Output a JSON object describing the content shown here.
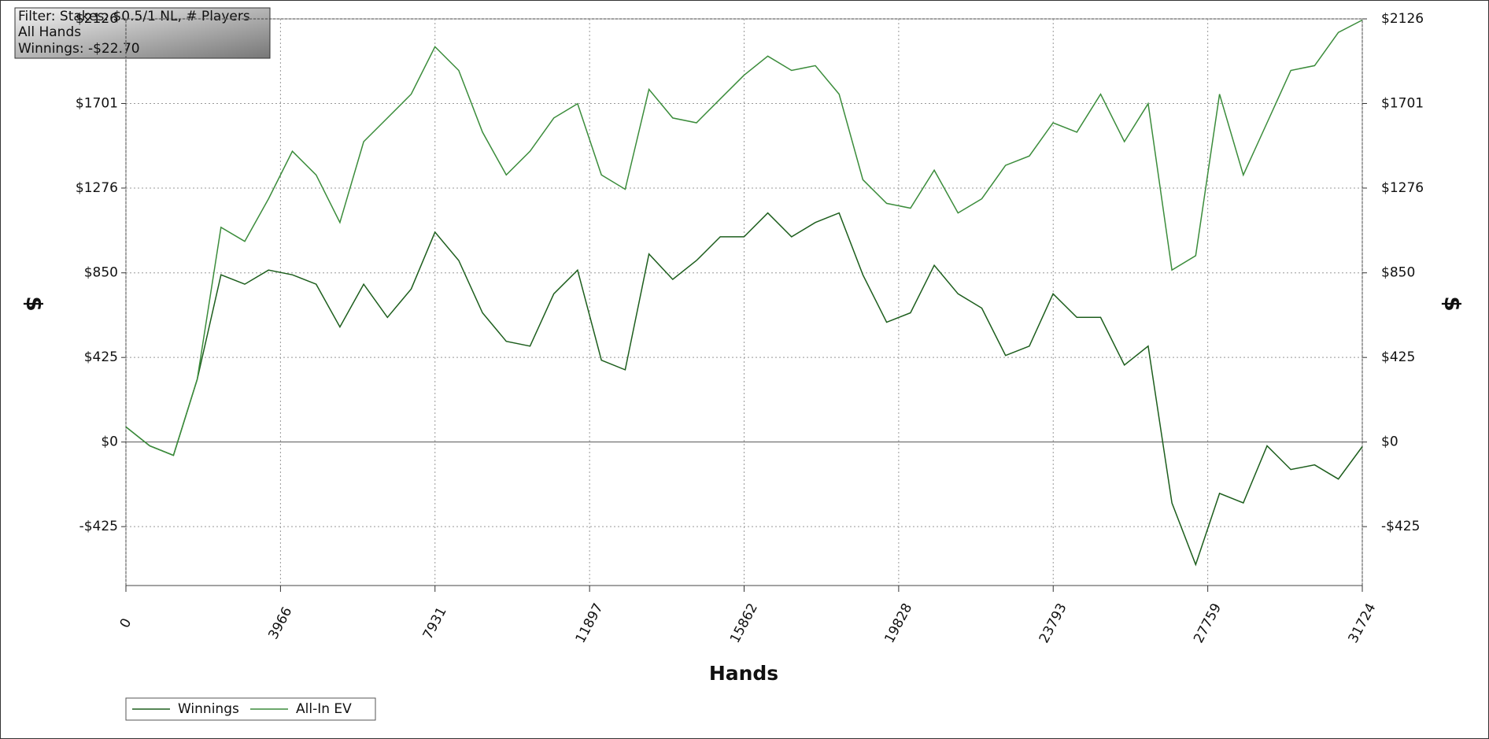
{
  "chart_data": {
    "type": "line",
    "annotations": [
      "Filter: Stakes: $0.5/1 NL, # Players",
      "All Hands",
      "Winnings: -$22.70"
    ],
    "x_label": "Hands",
    "y_label": "$",
    "x": [
      0,
      610,
      1220,
      1830,
      2440,
      3050,
      3660,
      4270,
      4880,
      5490,
      6100,
      6710,
      7320,
      7930,
      8540,
      9150,
      9760,
      10370,
      10980,
      11590,
      12200,
      12810,
      13420,
      14030,
      14640,
      15250,
      15860,
      16470,
      17080,
      17690,
      18300,
      18910,
      19520,
      20130,
      20740,
      21350,
      21960,
      22570,
      23180,
      23790,
      24400,
      25010,
      25620,
      26230,
      26840,
      27450,
      28060,
      28670,
      29280,
      29890,
      30500,
      31110,
      31724
    ],
    "series": [
      {
        "name": "Winnings",
        "color": "#1d5e1d",
        "values": [
          76,
          -19,
          -67,
          315,
          840,
          793,
          864,
          840,
          793,
          578,
          793,
          626,
          769,
          1055,
          912,
          649,
          506,
          482,
          745,
          864,
          411,
          363,
          945,
          817,
          912,
          1031,
          1031,
          1151,
          1031,
          1103,
          1151,
          840,
          602,
          649,
          888,
          745,
          673,
          435,
          482,
          745,
          626,
          626,
          387,
          482,
          -306,
          -616,
          -258,
          -306,
          -19,
          -138,
          -115,
          -186,
          -23
        ]
      },
      {
        "name": "All-In EV",
        "color": "#3b8c3b",
        "values": [
          76,
          -19,
          -67,
          315,
          1079,
          1008,
          1222,
          1461,
          1342,
          1103,
          1509,
          1628,
          1748,
          1986,
          1867,
          1557,
          1342,
          1461,
          1628,
          1700,
          1342,
          1270,
          1772,
          1628,
          1604,
          1724,
          1843,
          1939,
          1867,
          1891,
          1748,
          1318,
          1199,
          1175,
          1366,
          1151,
          1222,
          1390,
          1437,
          1604,
          1557,
          1748,
          1509,
          1700,
          864,
          936,
          1748,
          1342,
          1604,
          1867,
          1891,
          2058,
          2120
        ]
      }
    ],
    "xlim": [
      0,
      31724
    ],
    "xticks": [
      0,
      3966,
      7931,
      11897,
      15862,
      19828,
      23793,
      27759,
      31724
    ],
    "ylim": [
      -721,
      2126
    ],
    "yticks": [
      {
        "value": -425,
        "label": "-$425"
      },
      {
        "value": 0,
        "label": "$0"
      },
      {
        "value": 425,
        "label": "$425"
      },
      {
        "value": 850,
        "label": "$850"
      },
      {
        "value": 1276,
        "label": "$1276"
      },
      {
        "value": 1701,
        "label": "$1701"
      },
      {
        "value": 2126,
        "label": "$2126"
      }
    ],
    "grid": true,
    "legend": "bottom-left"
  }
}
